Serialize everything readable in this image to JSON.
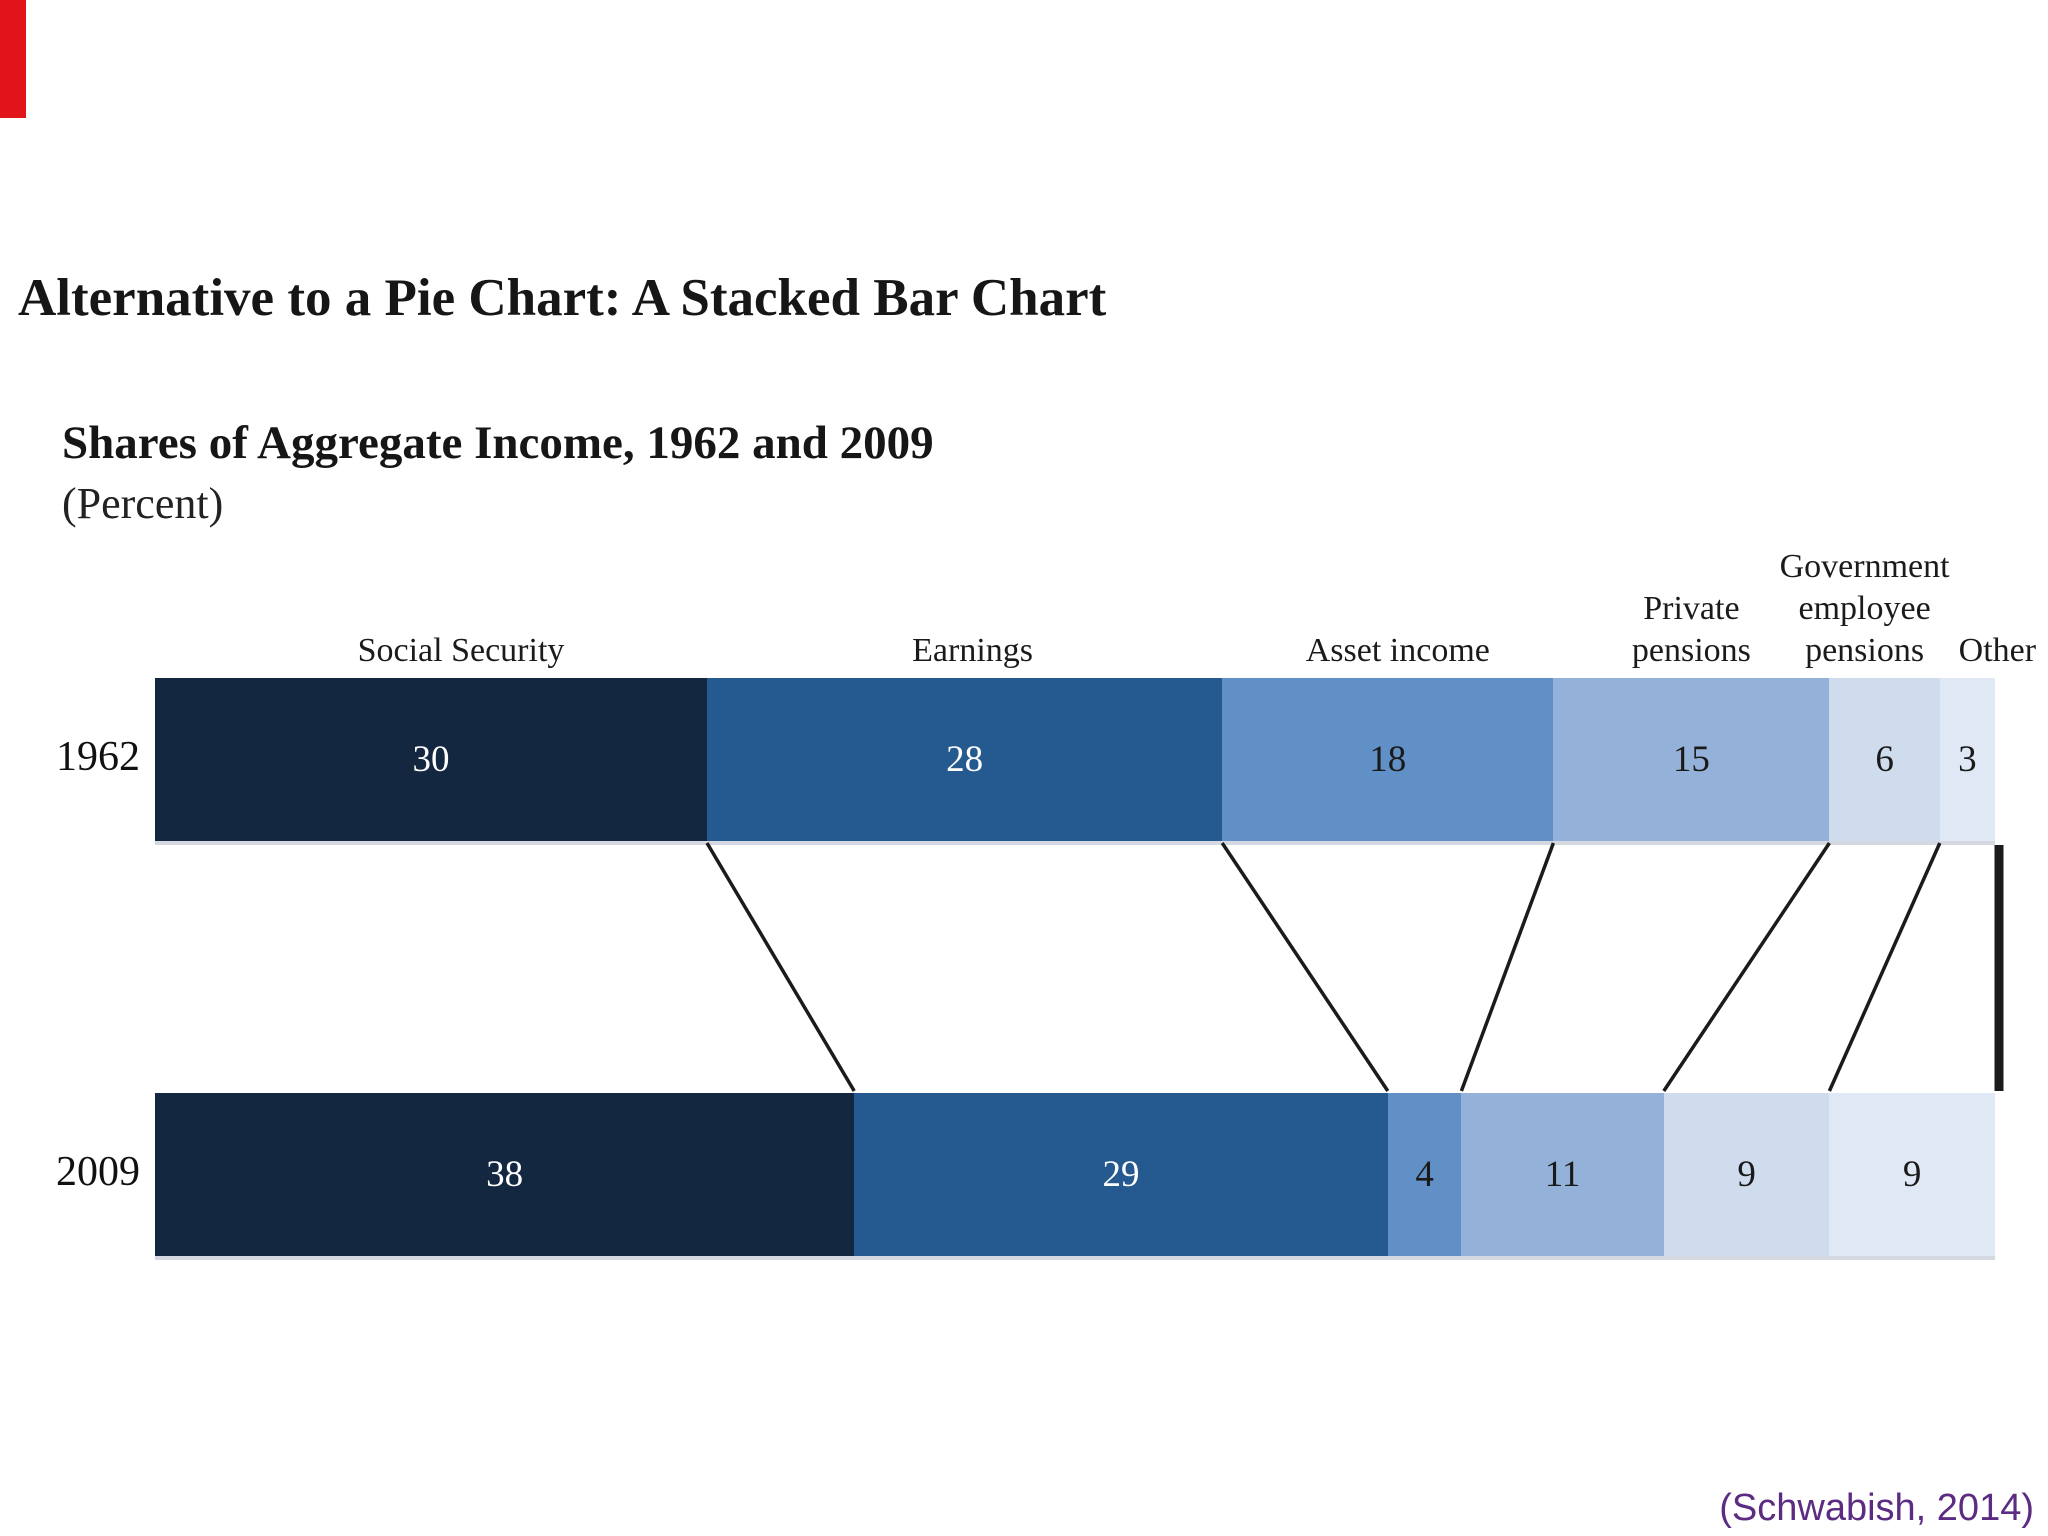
{
  "slide": {
    "title": "Alternative to a Pie Chart: A Stacked Bar Chart",
    "citation": "(Schwabish, 2014)",
    "accent_color": "#e1141c",
    "citation_color": "#5b2c82"
  },
  "chart_data": {
    "type": "bar",
    "subtype": "horizontal-stacked",
    "title": "Shares of Aggregate Income, 1962 and 2009",
    "units_label": "(Percent)",
    "xlim": [
      0,
      100
    ],
    "categories": [
      "Social Security",
      "Earnings",
      "Asset income",
      "Private pensions",
      "Government employee pensions",
      "Other"
    ],
    "category_label_lines": [
      [
        "Social Security"
      ],
      [
        "Earnings"
      ],
      [
        "Asset income"
      ],
      [
        "Private",
        "pensions"
      ],
      [
        "Government",
        "employee",
        "pensions"
      ],
      [
        "Other"
      ]
    ],
    "series": [
      {
        "name": "1962",
        "values": [
          30,
          28,
          18,
          15,
          6,
          3
        ]
      },
      {
        "name": "2009",
        "values": [
          38,
          29,
          4,
          11,
          9,
          9
        ]
      }
    ],
    "segment_colors": [
      "#142740",
      "#255a90",
      "#6090c6",
      "#94b2d9",
      "#cedcee",
      "#dfe8f4"
    ],
    "value_text_colors": [
      "#ffffff",
      "#ffffff",
      "#1a1a1a",
      "#1a1a1a",
      "#1a1a1a",
      "#1a1a1a"
    ],
    "connector_color": "#1b1b1b",
    "legend": "none",
    "grid": false
  }
}
